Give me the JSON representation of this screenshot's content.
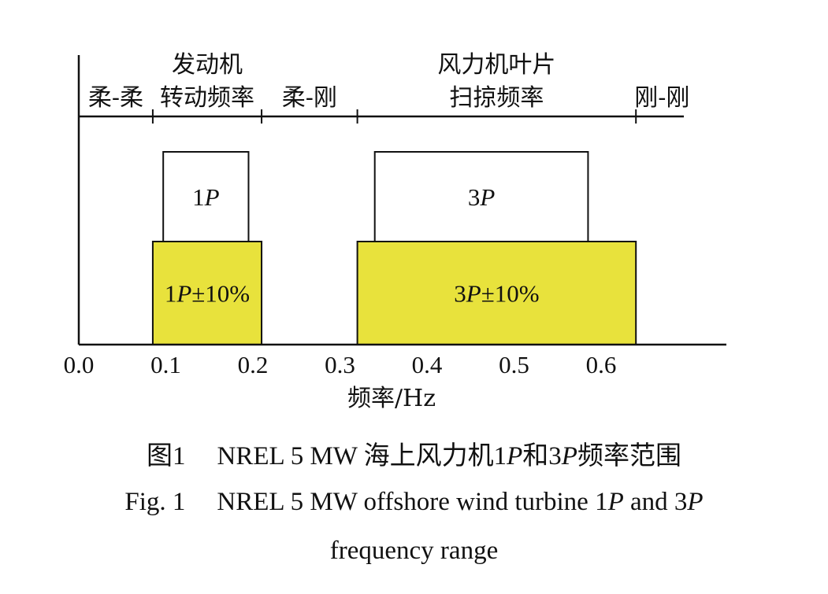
{
  "chart_data": {
    "type": "bar",
    "xlabel": "频率/Hz",
    "xlim": [
      0.0,
      0.7
    ],
    "xticks": [
      "0.0",
      "0.1",
      "0.2",
      "0.3",
      "0.4",
      "0.5",
      "0.6"
    ],
    "regions": [
      {
        "label": "柔-柔",
        "from": 0.0,
        "to": 0.085
      },
      {
        "label": "柔-刚",
        "from": 0.21,
        "to": 0.32
      },
      {
        "label": "刚-刚",
        "from": 0.64,
        "to": 0.7
      }
    ],
    "bands": [
      {
        "name": "发动机转动频率",
        "label_line1": "发动机",
        "label_line2": "转动频率",
        "from": 0.085,
        "to": 0.21
      },
      {
        "name": "风力机叶片扫掠频率",
        "label_line1": "风力机叶片",
        "label_line2": "扫掠频率",
        "from": 0.32,
        "to": 0.64
      }
    ],
    "bars": [
      {
        "label": "1P",
        "from": 0.097,
        "to": 0.195,
        "level": "upper",
        "color": "#ffffff"
      },
      {
        "label": "1P±10%",
        "from": 0.085,
        "to": 0.21,
        "level": "lower",
        "color": "#e8e23c"
      },
      {
        "label": "3P",
        "from": 0.34,
        "to": 0.585,
        "level": "upper",
        "color": "#ffffff"
      },
      {
        "label": "3P±10%",
        "from": 0.32,
        "to": 0.64,
        "level": "lower",
        "color": "#e8e23c"
      }
    ]
  },
  "caption": {
    "cn_prefix": "图1",
    "cn_a": "NREL 5 MW 海上风力机",
    "cn_b": "1",
    "cn_c": "和",
    "cn_d": "3",
    "cn_e": "频率范围",
    "en_prefix": "Fig. 1",
    "en_a": "NREL 5 MW offshore wind turbine 1",
    "en_b": " and 3",
    "en_c": "frequency range",
    "p": "P"
  }
}
